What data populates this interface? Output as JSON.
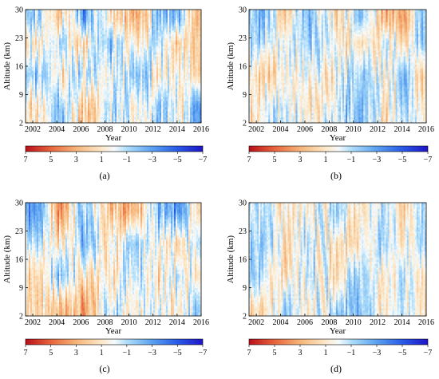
{
  "chart_data": [
    {
      "panel": "(a)",
      "type": "heatmap",
      "xlabel": "Year",
      "ylabel": "Altitude (km)",
      "xlim": [
        2001.4,
        2016
      ],
      "ylim": [
        2,
        30
      ],
      "x_ticks": [
        2002,
        2004,
        2006,
        2008,
        2010,
        2012,
        2014,
        2016
      ],
      "y_ticks": [
        2,
        9,
        16,
        23,
        30
      ],
      "colorbar": {
        "ticks": [
          "7",
          "5",
          "3",
          "1",
          "−1",
          "−3",
          "−5",
          "−7"
        ],
        "range": [
          7,
          -7
        ]
      },
      "seed": 11,
      "x_samples": [
        2002.5,
        2004.3,
        2006.2,
        2008.5,
        2010.7,
        2012.6,
        2014.2,
        2015.6
      ],
      "y_samples": [
        6,
        14,
        22,
        28
      ],
      "values": [
        [
          1.5,
          -2.0,
          0.8,
          -1.0
        ],
        [
          -2.5,
          1.2,
          -0.8,
          2.0
        ],
        [
          2.5,
          -1.0,
          1.5,
          -3.0
        ],
        [
          -1.0,
          0.5,
          -2.0,
          1.0
        ],
        [
          0.8,
          -2.5,
          1.0,
          3.5
        ],
        [
          -2.0,
          1.5,
          -1.0,
          -2.5
        ],
        [
          1.0,
          -0.5,
          2.0,
          -1.5
        ],
        [
          -3.0,
          2.0,
          1.5,
          2.5
        ]
      ]
    },
    {
      "panel": "(b)",
      "type": "heatmap",
      "xlabel": "Year",
      "ylabel": "Altitude (km)",
      "xlim": [
        2001.4,
        2016
      ],
      "ylim": [
        2,
        30
      ],
      "x_ticks": [
        2002,
        2004,
        2006,
        2008,
        2010,
        2012,
        2014,
        2016
      ],
      "y_ticks": [
        2,
        9,
        16,
        23,
        30
      ],
      "colorbar": {
        "ticks": [
          "7",
          "5",
          "3",
          "1",
          "−1",
          "−3",
          "−5",
          "−7"
        ],
        "range": [
          7,
          -7
        ]
      },
      "seed": 29,
      "x_samples": [
        2002.5,
        2004.3,
        2006.2,
        2008.5,
        2010.7,
        2012.6,
        2014.2,
        2015.6
      ],
      "y_samples": [
        6,
        14,
        22,
        28
      ],
      "values": [
        [
          1.0,
          1.5,
          -1.5,
          -2.0
        ],
        [
          -1.5,
          0.8,
          1.0,
          2.0
        ],
        [
          1.2,
          -0.8,
          -1.2,
          -1.5
        ],
        [
          -0.8,
          1.0,
          0.8,
          1.2
        ],
        [
          -2.5,
          -1.5,
          1.5,
          -2.0
        ],
        [
          1.5,
          1.0,
          -0.8,
          2.5
        ],
        [
          -1.0,
          -2.0,
          1.0,
          3.0
        ],
        [
          0.8,
          1.2,
          -1.5,
          -1.0
        ]
      ]
    },
    {
      "panel": "(c)",
      "type": "heatmap",
      "xlabel": "Year",
      "ylabel": "Altitude (km)",
      "xlim": [
        2001.4,
        2016
      ],
      "ylim": [
        2,
        30
      ],
      "x_ticks": [
        2002,
        2004,
        2006,
        2008,
        2010,
        2012,
        2014,
        2016
      ],
      "y_ticks": [
        2,
        9,
        16,
        23,
        30
      ],
      "colorbar": {
        "ticks": [
          "7",
          "5",
          "3",
          "1",
          "−1",
          "−3",
          "−5",
          "−7"
        ],
        "range": [
          7,
          -7
        ]
      },
      "seed": 47,
      "x_samples": [
        2002.5,
        2004.3,
        2006.2,
        2008.5,
        2010.7,
        2012.6,
        2014.2,
        2015.6
      ],
      "y_samples": [
        4,
        12,
        20,
        28
      ],
      "values": [
        [
          2.0,
          1.0,
          -1.0,
          -2.5
        ],
        [
          1.5,
          -1.5,
          2.0,
          3.5
        ],
        [
          3.0,
          1.0,
          -1.5,
          -2.0
        ],
        [
          -1.0,
          0.8,
          1.2,
          2.5
        ],
        [
          1.0,
          -1.0,
          -2.0,
          3.0
        ],
        [
          -0.8,
          1.5,
          0.8,
          -2.5
        ],
        [
          1.2,
          -1.2,
          1.5,
          -3.0
        ],
        [
          -1.5,
          1.0,
          -1.0,
          1.5
        ]
      ]
    },
    {
      "panel": "(d)",
      "type": "heatmap",
      "xlabel": "Year",
      "ylabel": "Altitude (km)",
      "xlim": [
        2001.4,
        2016
      ],
      "ylim": [
        2,
        30
      ],
      "x_ticks": [
        2002,
        2004,
        2006,
        2008,
        2010,
        2012,
        2014,
        2016
      ],
      "y_ticks": [
        2,
        9,
        16,
        23,
        30
      ],
      "colorbar": {
        "ticks": [
          "7",
          "5",
          "3",
          "1",
          "−1",
          "−3",
          "−5",
          "−7"
        ],
        "range": [
          7,
          -7
        ]
      },
      "seed": 83,
      "x_samples": [
        2002.5,
        2004.3,
        2006.2,
        2008.5,
        2010.7,
        2012.6,
        2014.2,
        2015.6
      ],
      "y_samples": [
        4,
        12,
        20,
        28
      ],
      "values": [
        [
          1.5,
          -1.0,
          -1.5,
          -1.0
        ],
        [
          -0.8,
          1.2,
          1.0,
          1.5
        ],
        [
          1.0,
          -0.8,
          -1.0,
          0.8
        ],
        [
          -1.2,
          1.0,
          1.5,
          -1.0
        ],
        [
          -2.0,
          -1.5,
          0.8,
          1.2
        ],
        [
          1.0,
          0.8,
          -1.2,
          -0.8
        ],
        [
          -0.8,
          -1.0,
          1.0,
          2.0
        ],
        [
          0.8,
          1.2,
          -1.0,
          -1.2
        ]
      ]
    }
  ]
}
